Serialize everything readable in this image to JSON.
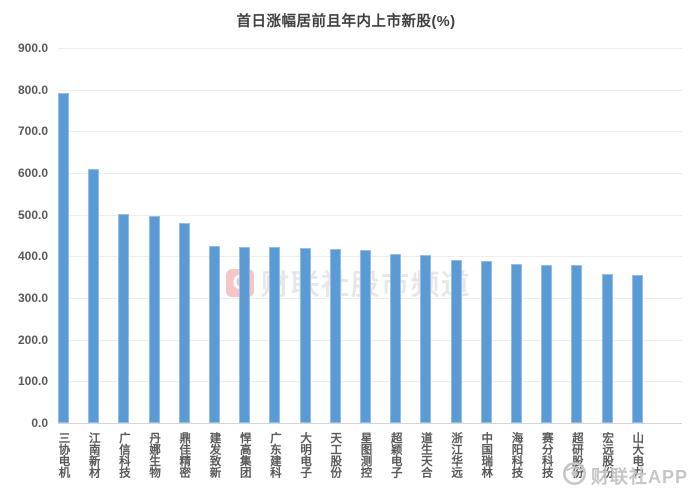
{
  "chart_data": {
    "type": "bar",
    "title": "首日涨幅居前且年内上市新股(%)",
    "categories": [
      "三协电机",
      "江南新材",
      "广信科技",
      "丹娜生物",
      "鼎佳精密",
      "建发致新",
      "悍高集团",
      "广东建科",
      "大明电子",
      "天工股份",
      "星图测控",
      "超颖电子",
      "道生天合",
      "浙江华远",
      "中国瑞林",
      "海阳科技",
      "赛分科技",
      "超研股份",
      "宏远股份",
      "山大电力"
    ],
    "values": [
      791,
      610,
      501,
      497,
      480,
      424,
      423,
      422,
      419,
      418,
      416,
      405,
      403,
      392,
      388,
      382,
      380,
      379,
      358,
      356
    ],
    "xlabel": "",
    "ylabel": "",
    "ylim": [
      0,
      900
    ],
    "ytick_step": 100,
    "ytick_decimals": 1,
    "grid": true,
    "legend": false,
    "bar_color": "#5B9BD5"
  },
  "watermarks": {
    "center_logo_letter": "C",
    "center_text": "财联社股市频道",
    "app_text": "财联社APP"
  },
  "colors": {
    "bar": "#5B9BD5",
    "title": "#404040",
    "axis_label": "#595959",
    "gridline": "#ededed",
    "axis_line": "#d6d6d6",
    "wm_red": "rgba(230,80,80,0.6)",
    "wm_gray": "#c6c6c6"
  }
}
